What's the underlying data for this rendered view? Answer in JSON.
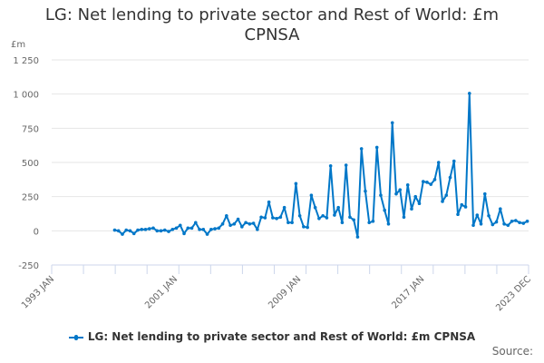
{
  "header": {
    "title_line1": "LG: Net lending to private sector and Rest of World: £m",
    "title_line2": "CPNSA",
    "unit_label": "£m"
  },
  "legend": {
    "label": "LG: Net lending to private sector and Rest of World: £m CPNSA",
    "color": "#0077c8"
  },
  "footer": {
    "source_label": "Source:"
  },
  "colors": {
    "series": "#0077c8",
    "grid": "#e6e6e6",
    "axis": "#ccd6eb",
    "text": "#666666"
  },
  "chart_data": {
    "type": "line",
    "title": "LG: Net lending to private sector and Rest of World: £m CPNSA",
    "xlabel": "",
    "ylabel": "£m",
    "ylim": [
      -250,
      1250
    ],
    "yticks": [
      -250,
      0,
      250,
      500,
      750,
      1000,
      1250
    ],
    "ytick_labels": [
      "-250",
      "0",
      "250",
      "500",
      "750",
      "1 000",
      "1 250"
    ],
    "xticks": [
      "1993 JAN",
      "2001 JAN",
      "2009 JAN",
      "2017 JAN",
      "2023 DEC"
    ],
    "xrange": [
      "1993 JAN",
      "2023 DEC"
    ],
    "grid": true,
    "legend_position": "bottom",
    "series": [
      {
        "name": "LG: Net lending to private sector and Rest of World: £m CPNSA",
        "frequency": "quarterly",
        "start": "1997 Q1",
        "x": [
          "1997 Q1",
          "1997 Q2",
          "1997 Q3",
          "1997 Q4",
          "1998 Q1",
          "1998 Q2",
          "1998 Q3",
          "1998 Q4",
          "1999 Q1",
          "1999 Q2",
          "1999 Q3",
          "1999 Q4",
          "2000 Q1",
          "2000 Q2",
          "2000 Q3",
          "2000 Q4",
          "2001 Q1",
          "2001 Q2",
          "2001 Q3",
          "2001 Q4",
          "2002 Q1",
          "2002 Q2",
          "2002 Q3",
          "2002 Q4",
          "2003 Q1",
          "2003 Q2",
          "2003 Q3",
          "2003 Q4",
          "2004 Q1",
          "2004 Q2",
          "2004 Q3",
          "2004 Q4",
          "2005 Q1",
          "2005 Q2",
          "2005 Q3",
          "2005 Q4",
          "2006 Q1",
          "2006 Q2",
          "2006 Q3",
          "2006 Q4",
          "2007 Q1",
          "2007 Q2",
          "2007 Q3",
          "2007 Q4",
          "2008 Q1",
          "2008 Q2",
          "2008 Q3",
          "2008 Q4",
          "2009 Q1",
          "2009 Q2",
          "2009 Q3",
          "2009 Q4",
          "2010 Q1",
          "2010 Q2",
          "2010 Q3",
          "2010 Q4",
          "2011 Q1",
          "2011 Q2",
          "2011 Q3",
          "2011 Q4",
          "2012 Q1",
          "2012 Q2",
          "2012 Q3",
          "2012 Q4",
          "2013 Q1",
          "2013 Q2",
          "2013 Q3",
          "2013 Q4",
          "2014 Q1",
          "2014 Q2",
          "2014 Q3",
          "2014 Q4",
          "2015 Q1",
          "2015 Q2",
          "2015 Q3",
          "2015 Q4",
          "2016 Q1",
          "2016 Q2",
          "2016 Q3",
          "2016 Q4",
          "2017 Q1",
          "2017 Q2",
          "2017 Q3",
          "2017 Q4",
          "2018 Q1",
          "2018 Q2",
          "2018 Q3",
          "2018 Q4",
          "2019 Q1",
          "2019 Q2",
          "2019 Q3",
          "2019 Q4",
          "2020 Q1",
          "2020 Q2",
          "2020 Q3",
          "2020 Q4",
          "2021 Q1",
          "2021 Q2",
          "2021 Q3",
          "2021 Q4",
          "2022 Q1",
          "2022 Q2",
          "2022 Q3",
          "2022 Q4",
          "2023 Q1",
          "2023 Q2",
          "2023 Q3",
          "2023 Q4"
        ],
        "values": [
          5,
          0,
          -25,
          5,
          0,
          -20,
          5,
          10,
          10,
          15,
          20,
          0,
          0,
          5,
          -5,
          10,
          20,
          40,
          -20,
          20,
          20,
          60,
          10,
          10,
          -25,
          10,
          15,
          20,
          50,
          110,
          40,
          50,
          85,
          30,
          60,
          50,
          55,
          10,
          100,
          95,
          210,
          95,
          90,
          100,
          170,
          60,
          60,
          345,
          110,
          30,
          25,
          260,
          170,
          90,
          110,
          95,
          475,
          115,
          170,
          60,
          480,
          100,
          80,
          -45,
          600,
          290,
          60,
          70,
          610,
          260,
          150,
          50,
          790,
          270,
          300,
          100,
          335,
          160,
          250,
          200,
          360,
          355,
          340,
          375,
          500,
          215,
          260,
          390,
          510,
          120,
          190,
          175,
          1005,
          40,
          115,
          50,
          270,
          110,
          45,
          65,
          160,
          50,
          40,
          70,
          75,
          60,
          55,
          70
        ]
      }
    ]
  }
}
